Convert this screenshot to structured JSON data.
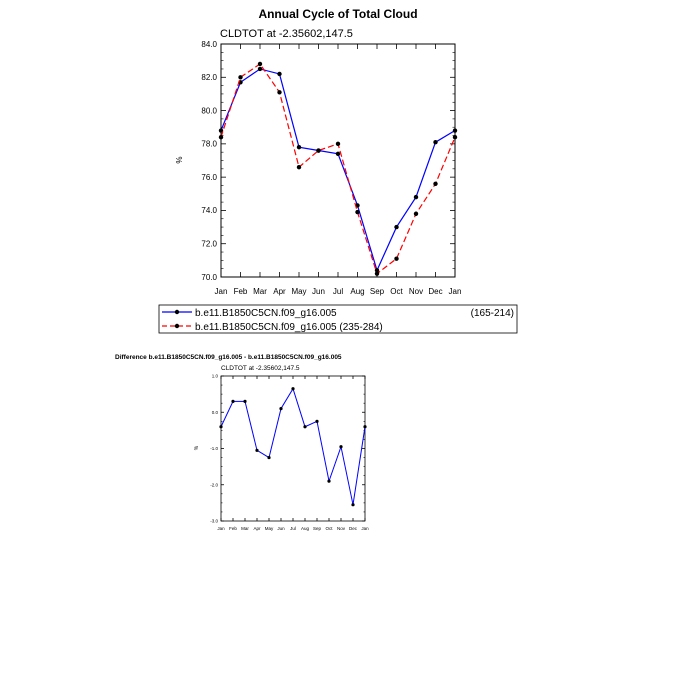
{
  "main_title": "Annual Cycle of Total Cloud",
  "chart_data": [
    {
      "type": "line",
      "subtitle": "CLDTOT at -2.35602,147.5",
      "ylabel": "%",
      "ylim": [
        70.0,
        84.0
      ],
      "yticks": [
        "70.0",
        "72.0",
        "74.0",
        "76.0",
        "78.0",
        "80.0",
        "82.0",
        "84.0"
      ],
      "categories": [
        "Jan",
        "Feb",
        "Mar",
        "Apr",
        "May",
        "Jun",
        "Jul",
        "Aug",
        "Sep",
        "Oct",
        "Nov",
        "Dec",
        "Jan"
      ],
      "series": [
        {
          "name": "b.e11.B1850C5CN.f09_g16.005",
          "suffix": "(165-214)",
          "color": "#0000ff",
          "dash": "solid",
          "values": [
            78.8,
            81.7,
            82.5,
            82.2,
            77.8,
            77.6,
            77.4,
            74.3,
            70.4,
            73.0,
            74.8,
            78.1,
            78.8
          ]
        },
        {
          "name": "b.e11.B1850C5CN.f09_g16.005 (235-284)",
          "suffix": "",
          "color": "#ff0000",
          "dash": "dashed",
          "values": [
            78.4,
            82.0,
            82.8,
            81.1,
            76.6,
            77.6,
            78.0,
            73.9,
            70.2,
            71.1,
            73.8,
            75.6,
            78.4
          ]
        }
      ]
    },
    {
      "type": "line",
      "title": "Difference b.e11.B1850C5CN.f09_g16.005 - b.e11.B1850C5CN.f09_g16.005",
      "subtitle": "CLDTOT at -2.35602,147.5",
      "ylabel": "%",
      "ylim": [
        -3.0,
        1.0
      ],
      "yticks": [
        "-3.0",
        "-2.0",
        "-1.0",
        "0.0",
        "1.0"
      ],
      "categories": [
        "Jan",
        "Feb",
        "Mar",
        "Apr",
        "May",
        "Jun",
        "Jul",
        "Aug",
        "Sep",
        "Oct",
        "Nov",
        "Dec",
        "Jan"
      ],
      "series": [
        {
          "color": "#0000ff",
          "dash": "solid",
          "values": [
            -0.4,
            0.3,
            0.3,
            -1.05,
            -1.25,
            0.1,
            0.65,
            -0.4,
            -0.25,
            -1.9,
            -0.95,
            -2.55,
            -0.4
          ]
        }
      ]
    }
  ]
}
